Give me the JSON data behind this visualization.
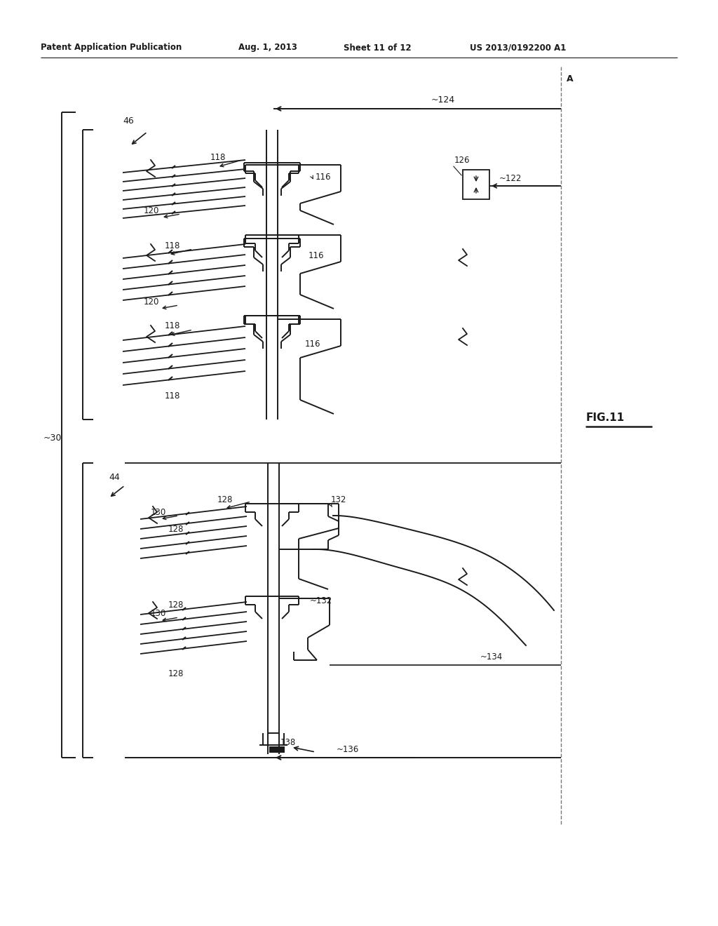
{
  "bg_color": "#ffffff",
  "lc": "#1a1a1a",
  "header_text": "Patent Application Publication",
  "header_date": "Aug. 1, 2013",
  "header_sheet": "Sheet 11 of 12",
  "header_patent": "US 2013/0192200 A1",
  "fig_label": "FIG.11"
}
